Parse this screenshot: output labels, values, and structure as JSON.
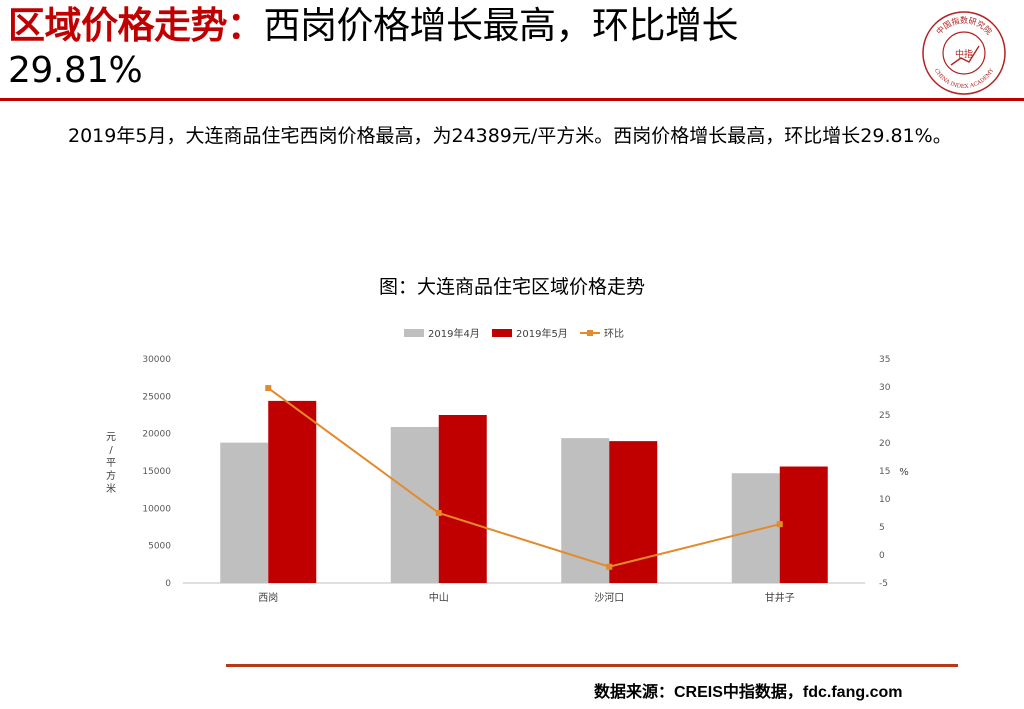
{
  "header": {
    "title_red": "区域价格走势：",
    "title_black": "西岗价格增长最高，环比增长",
    "title_line2": "29.81%"
  },
  "logo": {
    "icon": "china-index-academy-seal-icon",
    "ring_text_cn": "中国指数研究院",
    "ring_text_en": "CHINA INDEX ACADEMY",
    "center_text": "中指"
  },
  "summary": "2019年5月，大连商品住宅西岗价格最高，为24389元/平方米。西岗价格增长最高，环比增长29.81%。",
  "source": "数据来源：CREIS中指数据，fdc.fang.com",
  "colors": {
    "brand_red": "#c00000",
    "april_bar": "#bfbfbf",
    "may_bar": "#c00000",
    "mom_line": "#e38a2c",
    "rule_bottom": "#b53a14"
  },
  "chart_data": {
    "type": "bar",
    "title": "图：大连商品住宅区域价格走势",
    "categories": [
      "西岗",
      "中山",
      "沙河口",
      "甘井子"
    ],
    "series": [
      {
        "name": "2019年4月",
        "type": "bar",
        "axis": "left",
        "values": [
          18800,
          20900,
          19400,
          14700
        ]
      },
      {
        "name": "2019年5月",
        "type": "bar",
        "axis": "left",
        "values": [
          24389,
          22500,
          19000,
          15600
        ]
      },
      {
        "name": "环比",
        "type": "line",
        "axis": "right",
        "values": [
          29.81,
          7.5,
          -2.1,
          5.5
        ]
      }
    ],
    "ylabel_left": "元/平方米",
    "ylabel_right": "%",
    "ylim_left": [
      0,
      30000
    ],
    "yticks_left": [
      "0",
      "5000",
      "10000",
      "15000",
      "20000",
      "25000",
      "30000"
    ],
    "ylim_right": [
      -5,
      35
    ],
    "yticks_right": [
      "-5",
      "0",
      "5",
      "10",
      "15",
      "20",
      "25",
      "30",
      "35"
    ],
    "legend_position": "top-center",
    "grid": false
  }
}
